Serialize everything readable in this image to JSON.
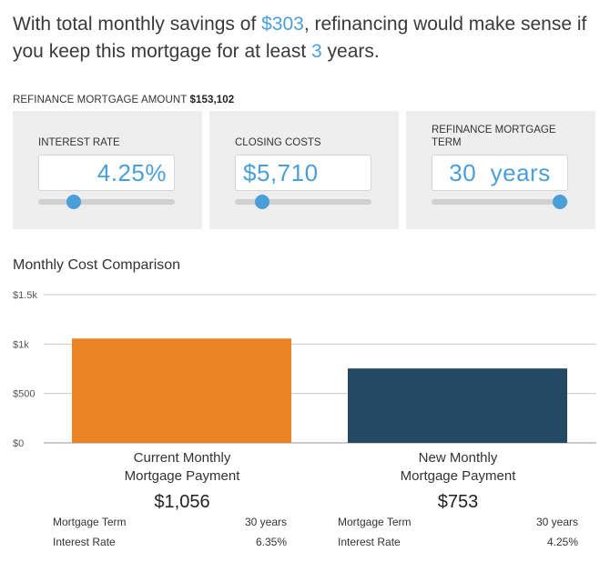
{
  "headline": {
    "part1": "With total monthly savings of ",
    "savings": "$303",
    "part2": ", refinancing would make sense if you keep this mortgage for at least ",
    "years": "3",
    "part3": " years."
  },
  "refinance_amount": {
    "label": "REFINANCE MORTGAGE AMOUNT",
    "value": "$153,102"
  },
  "controls": [
    {
      "label": "INTEREST RATE",
      "value": "4.25%",
      "slider_fraction": 0.26
    },
    {
      "label": "CLOSING COSTS",
      "value": "$5,710",
      "slider_fraction": 0.2
    },
    {
      "label": "REFINANCE MORTGAGE TERM",
      "value": "30  years",
      "slider_fraction": 0.94
    }
  ],
  "chart_title": "Monthly Cost Comparison",
  "chart_data": {
    "type": "bar",
    "title": "Monthly Cost Comparison",
    "categories": [
      "Current Monthly Mortgage Payment",
      "New Monthly Mortgage Payment"
    ],
    "values": [
      1056,
      753
    ],
    "colors": [
      "#ea8424",
      "#234963"
    ],
    "ylim": [
      0,
      1500
    ],
    "yticks": [
      0,
      500,
      1000,
      1500
    ],
    "ytick_labels": [
      "$0",
      "$500",
      "$1k",
      "$1.5k"
    ],
    "grid": true,
    "xlabel": "",
    "ylabel": ""
  },
  "payments": [
    {
      "label_line1": "Current Monthly",
      "label_line2": "Mortgage Payment",
      "amount": "$1,056",
      "details": [
        {
          "label": "Mortgage Term",
          "value": "30 years"
        },
        {
          "label": "Interest Rate",
          "value": "6.35%"
        }
      ]
    },
    {
      "label_line1": "New Monthly",
      "label_line2": "Mortgage Payment",
      "amount": "$753",
      "details": [
        {
          "label": "Mortgage Term",
          "value": "30 years"
        },
        {
          "label": "Interest Rate",
          "value": "4.25%"
        }
      ]
    }
  ]
}
